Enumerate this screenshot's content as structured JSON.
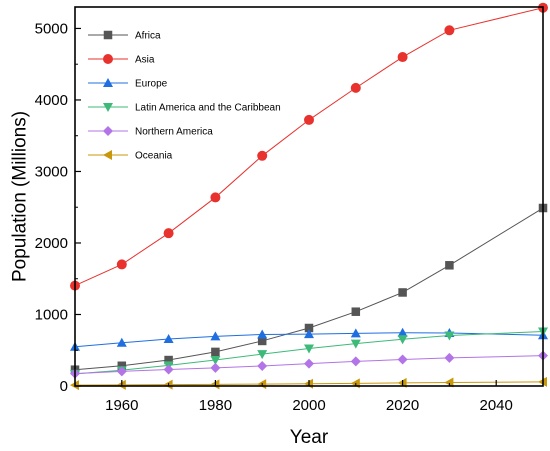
{
  "chart_data": {
    "type": "line",
    "xlabel": "Year",
    "ylabel": "Population (Millions)",
    "xlim": [
      1950,
      2050
    ],
    "ylim": [
      0,
      5300
    ],
    "x_ticks": [
      1960,
      1980,
      2000,
      2020,
      2040
    ],
    "y_ticks": [
      0,
      1000,
      2000,
      3000,
      4000,
      5000
    ],
    "x": [
      1950,
      1960,
      1970,
      1980,
      1990,
      2000,
      2010,
      2020,
      2030,
      2050
    ],
    "legend_position": "top-left",
    "grid": false,
    "series": [
      {
        "name": "Africa",
        "color": "#555555",
        "marker": "square",
        "values": [
          228,
          283,
          363,
          477,
          630,
          811,
          1039,
          1308,
          1688,
          2489
        ]
      },
      {
        "name": "Asia",
        "color": "#e8322e",
        "marker": "circle",
        "values": [
          1404,
          1700,
          2137,
          2637,
          3219,
          3721,
          4169,
          4600,
          4974,
          5290
        ]
      },
      {
        "name": "Europe",
        "color": "#1f6fe0",
        "marker": "triangle-up",
        "values": [
          549,
          605,
          657,
          694,
          721,
          726,
          736,
          745,
          741,
          710
        ]
      },
      {
        "name": "Latin America and the Caribbean",
        "color": "#3dba7a",
        "marker": "triangle-down",
        "values": [
          169,
          221,
          288,
          364,
          446,
          524,
          592,
          654,
          706,
          762
        ]
      },
      {
        "name": "Northern America",
        "color": "#b274e6",
        "marker": "diamond",
        "values": [
          173,
          205,
          231,
          254,
          280,
          313,
          344,
          370,
          393,
          425
        ]
      },
      {
        "name": "Oceania",
        "color": "#c9980a",
        "marker": "triangle-left",
        "values": [
          13,
          16,
          20,
          23,
          27,
          31,
          37,
          43,
          49,
          57
        ]
      }
    ]
  }
}
